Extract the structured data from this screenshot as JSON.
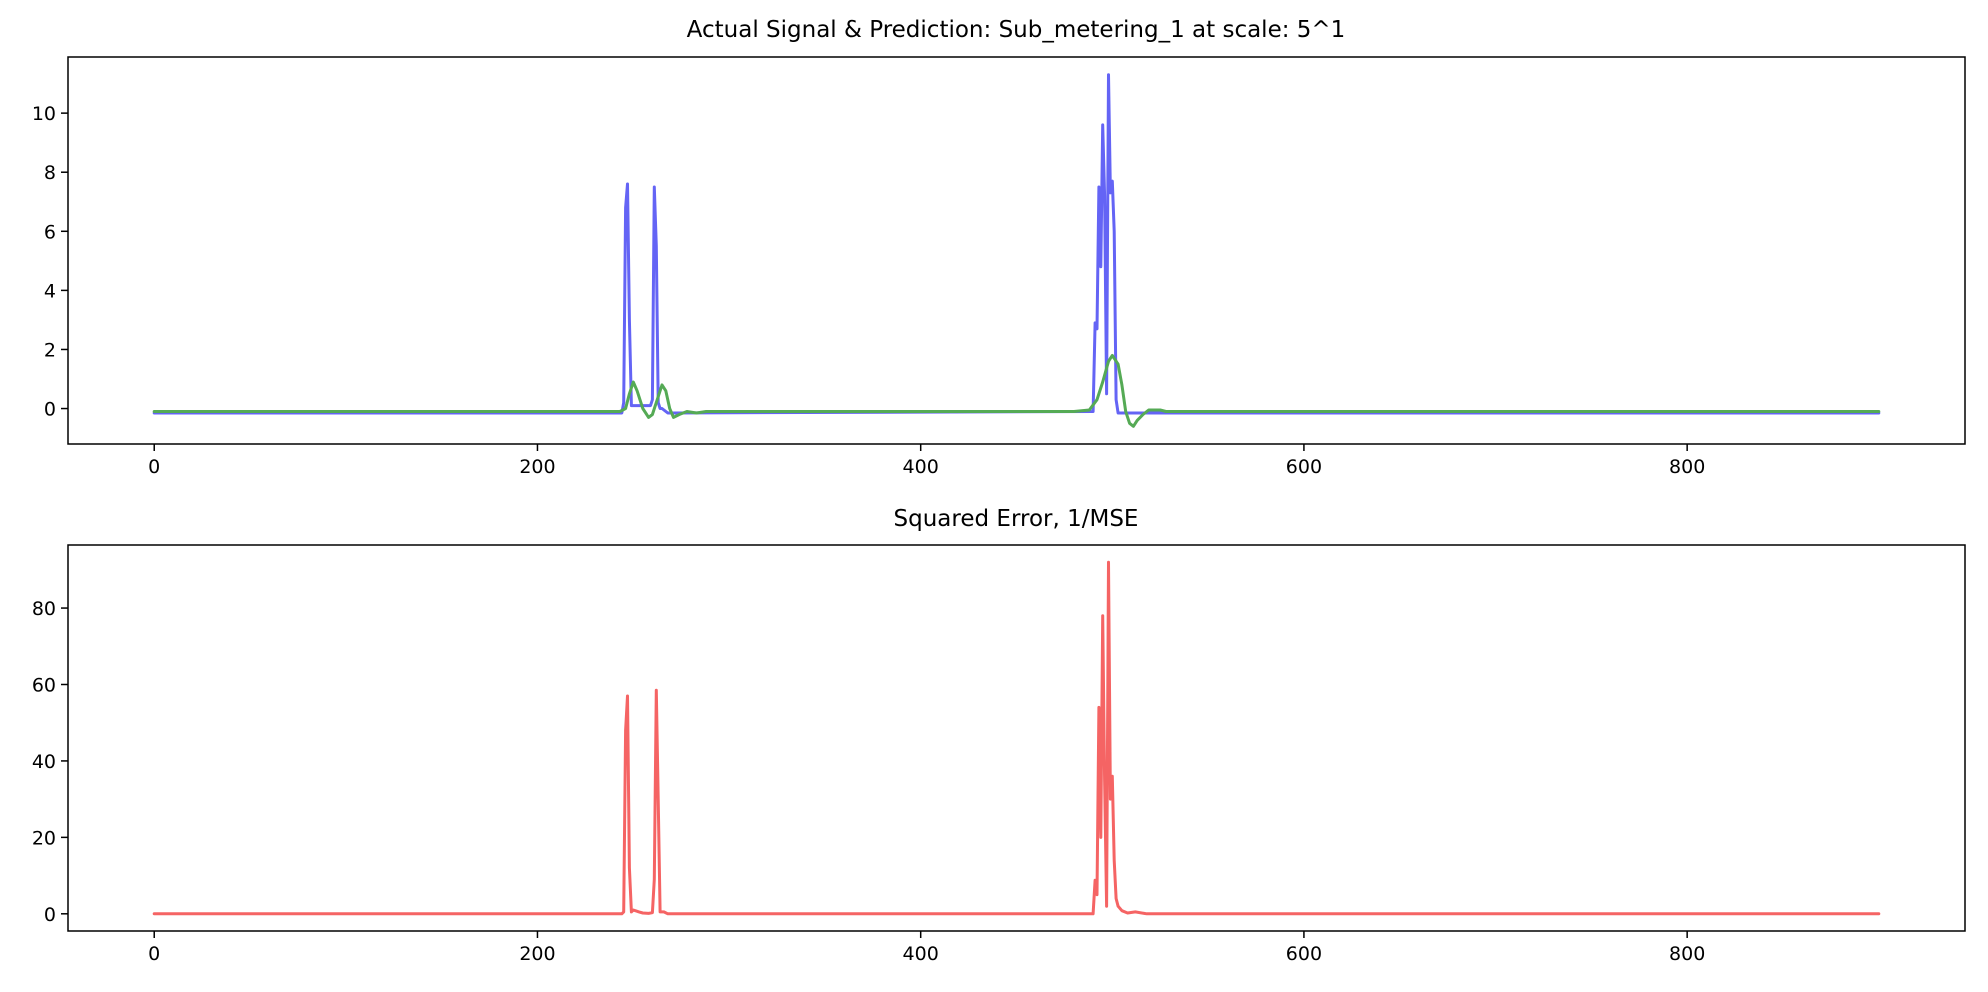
{
  "chart_data": [
    {
      "type": "line",
      "title": "Actual Signal & Prediction: Sub_metering_1 at scale: 5^1",
      "xlabel": "",
      "ylabel": "",
      "xlim": [
        -45,
        945
      ],
      "ylim": [
        -1.2,
        11.9
      ],
      "xticks": [
        0,
        200,
        400,
        600,
        800
      ],
      "xtick_labels": [
        "0",
        "200",
        "400",
        "600",
        "800"
      ],
      "yticks": [
        0,
        2,
        4,
        6,
        8,
        10
      ],
      "ytick_labels": [
        "0",
        "2",
        "4",
        "6",
        "8",
        "10"
      ],
      "grid": false,
      "series": [
        {
          "color": "#6464f5",
          "x": [
            0,
            244,
            245,
            246,
            247,
            248,
            249,
            250,
            255,
            259,
            260,
            261,
            262,
            263,
            264,
            265,
            268,
            270,
            490,
            491,
            492,
            493,
            494,
            495,
            496,
            497,
            498,
            499,
            500,
            501,
            502,
            503,
            504,
            505,
            506,
            900
          ],
          "y": [
            -0.15,
            -0.15,
            0.2,
            6.8,
            7.6,
            3.0,
            0.1,
            0.1,
            0.1,
            0.1,
            0.3,
            7.5,
            5.5,
            0.2,
            0.0,
            0.0,
            -0.15,
            -0.15,
            -0.1,
            2.9,
            2.7,
            7.5,
            4.8,
            9.6,
            7.2,
            0.5,
            11.3,
            7.3,
            7.7,
            6.0,
            0.3,
            -0.15,
            -0.15,
            -0.15,
            -0.15,
            -0.15
          ]
        },
        {
          "color": "#55aa55",
          "x": [
            0,
            243,
            246,
            248,
            250,
            252,
            255,
            258,
            260,
            263,
            265,
            267,
            269,
            271,
            274,
            278,
            283,
            288,
            480,
            488,
            492,
            495,
            498,
            500,
            503,
            505,
            507,
            509,
            511,
            513,
            516,
            519,
            522,
            525,
            528,
            535,
            900
          ],
          "y": [
            -0.1,
            -0.1,
            0.0,
            0.5,
            0.9,
            0.6,
            0.0,
            -0.3,
            -0.2,
            0.4,
            0.8,
            0.6,
            0.0,
            -0.3,
            -0.2,
            -0.1,
            -0.15,
            -0.1,
            -0.1,
            -0.05,
            0.3,
            0.9,
            1.6,
            1.8,
            1.5,
            0.8,
            -0.1,
            -0.5,
            -0.6,
            -0.4,
            -0.2,
            -0.05,
            -0.05,
            -0.05,
            -0.1,
            -0.1,
            -0.1
          ]
        }
      ]
    },
    {
      "type": "line",
      "title": "Squared Error, 1/MSE",
      "xlabel": "",
      "ylabel": "",
      "xlim": [
        -45,
        945
      ],
      "ylim": [
        -4.5,
        96.5
      ],
      "xticks": [
        0,
        200,
        400,
        600,
        800
      ],
      "xtick_labels": [
        "0",
        "200",
        "400",
        "600",
        "800"
      ],
      "yticks": [
        0,
        20,
        40,
        60,
        80
      ],
      "ytick_labels": [
        "0",
        "20",
        "40",
        "60",
        "80"
      ],
      "grid": false,
      "series": [
        {
          "color": "#f56464",
          "x": [
            0,
            244,
            245,
            246,
            247,
            248,
            249,
            250,
            253,
            255,
            258,
            260,
            261,
            262,
            263,
            264,
            266,
            268,
            272,
            490,
            491,
            492,
            493,
            494,
            495,
            496,
            497,
            498,
            499,
            500,
            501,
            502,
            503,
            505,
            508,
            512,
            518,
            900
          ],
          "y": [
            0,
            0,
            0.5,
            48,
            57,
            12,
            0.5,
            1,
            0.5,
            0.2,
            0.1,
            0.3,
            9,
            58.5,
            30,
            0.5,
            0.5,
            0,
            0,
            0,
            8.8,
            5,
            54,
            20,
            78,
            35,
            2,
            92,
            30,
            36,
            14,
            4,
            2,
            0.8,
            0.2,
            0.5,
            0,
            0
          ]
        }
      ]
    }
  ]
}
